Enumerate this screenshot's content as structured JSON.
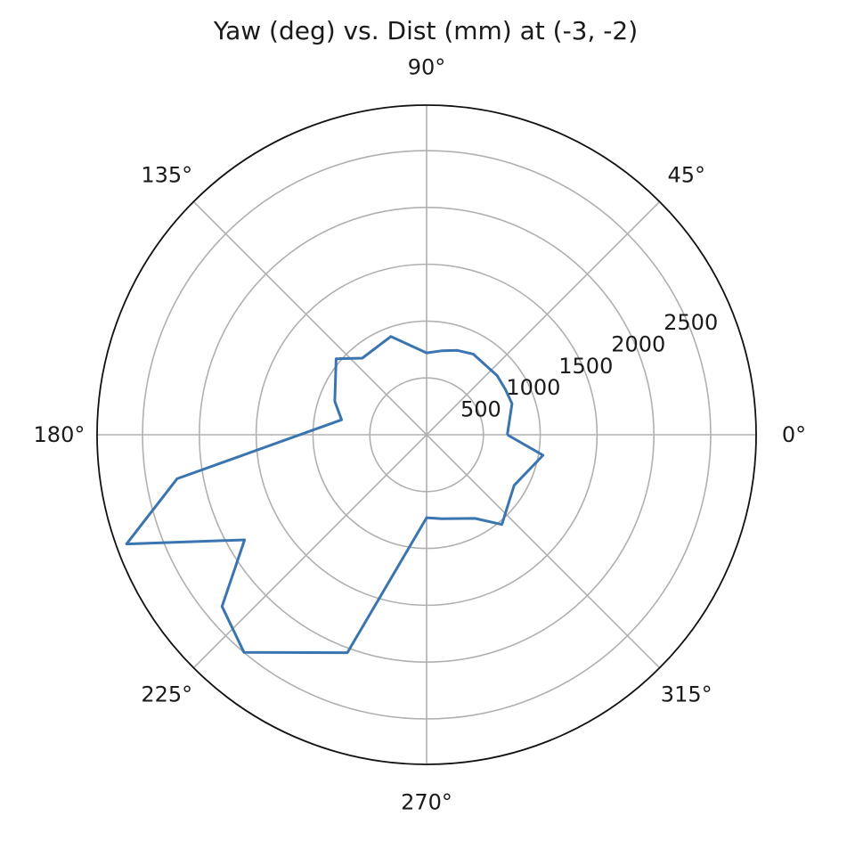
{
  "chart_data": {
    "type": "line",
    "projection": "polar",
    "title": "Yaw (deg) vs. Dist (mm) at (-3, -2)",
    "theta_unit": "deg",
    "theta_ticks": [
      {
        "value": 0,
        "label": "0°"
      },
      {
        "value": 45,
        "label": "45°"
      },
      {
        "value": 90,
        "label": "90°"
      },
      {
        "value": 135,
        "label": "135°"
      },
      {
        "value": 180,
        "label": "180°"
      },
      {
        "value": 225,
        "label": "225°"
      },
      {
        "value": 270,
        "label": "270°"
      },
      {
        "value": 315,
        "label": "315°"
      }
    ],
    "r_ticks": [
      {
        "value": 500,
        "label": "500"
      },
      {
        "value": 1000,
        "label": "1000"
      },
      {
        "value": 1500,
        "label": "1500"
      },
      {
        "value": 2000,
        "label": "2000"
      },
      {
        "value": 2500,
        "label": "2500"
      }
    ],
    "rlim": [
      0,
      2900
    ],
    "grid": true,
    "series": [
      {
        "color": "#3a75b0",
        "points": [
          {
            "theta": 0,
            "r": 710
          },
          {
            "theta": 20,
            "r": 800
          },
          {
            "theta": 30,
            "r": 800
          },
          {
            "theta": 40,
            "r": 810
          },
          {
            "theta": 60,
            "r": 820
          },
          {
            "theta": 70,
            "r": 790
          },
          {
            "theta": 80,
            "r": 750
          },
          {
            "theta": 90,
            "r": 720
          },
          {
            "theta": 110,
            "r": 920
          },
          {
            "theta": 130,
            "r": 880
          },
          {
            "theta": 140,
            "r": 1040
          },
          {
            "theta": 160,
            "r": 860
          },
          {
            "theta": 170,
            "r": 760
          },
          {
            "theta": 190,
            "r": 2230
          },
          {
            "theta": 200,
            "r": 2810
          },
          {
            "theta": 210,
            "r": 1850
          },
          {
            "theta": 220,
            "r": 2350
          },
          {
            "theta": 230,
            "r": 2500
          },
          {
            "theta": 250,
            "r": 2040
          },
          {
            "theta": 270,
            "r": 730
          },
          {
            "theta": 280,
            "r": 750
          },
          {
            "theta": 300,
            "r": 850
          },
          {
            "theta": 310,
            "r": 1030
          },
          {
            "theta": 330,
            "r": 890
          },
          {
            "theta": 350,
            "r": 1040
          },
          {
            "theta": 360,
            "r": 710
          }
        ]
      }
    ]
  }
}
